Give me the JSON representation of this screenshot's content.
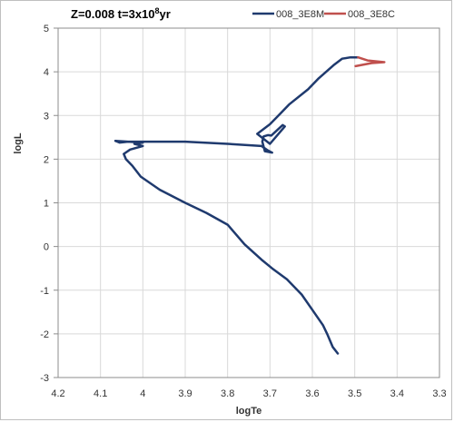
{
  "chart_data": {
    "type": "line",
    "title_main": "Z=0.008 t=3x10",
    "title_exp": "8",
    "title_tail": "yr",
    "xlabel": "logTe",
    "ylabel": "logL",
    "xlim": [
      4.2,
      3.3
    ],
    "ylim": [
      -3,
      5
    ],
    "x_reversed": true,
    "grid": true,
    "legend_position": "top-right",
    "xticks": [
      "4.2",
      "4.1",
      "4",
      "3.9",
      "3.8",
      "3.7",
      "3.6",
      "3.5",
      "3.4",
      "3.3"
    ],
    "yticks": [
      "5",
      "4",
      "3",
      "2",
      "1",
      "0",
      "-1",
      "-2",
      "-3"
    ],
    "series": [
      {
        "name": "008_3E8M",
        "color": "#1f3a6e",
        "x": [
          3.54,
          3.552,
          3.565,
          3.575,
          3.6,
          3.625,
          3.66,
          3.695,
          3.72,
          3.76,
          3.8,
          3.85,
          3.9,
          3.96,
          4.005,
          4.025,
          4.04,
          4.045,
          4.03,
          4.0,
          4.02,
          4.0,
          4.065,
          4.055,
          4.035,
          3.99,
          3.9,
          3.8,
          3.72,
          3.705,
          3.695,
          3.712,
          3.718,
          3.715,
          3.705,
          3.697,
          3.67,
          3.665,
          3.7,
          3.73,
          3.7,
          3.68,
          3.655,
          3.61,
          3.585,
          3.55,
          3.53,
          3.51,
          3.492
        ],
        "y": [
          -2.45,
          -2.3,
          -2.0,
          -1.8,
          -1.45,
          -1.1,
          -0.75,
          -0.5,
          -0.3,
          0.05,
          0.5,
          0.77,
          1.0,
          1.3,
          1.6,
          1.85,
          2.0,
          2.12,
          2.22,
          2.3,
          2.35,
          2.38,
          2.42,
          2.38,
          2.4,
          2.4,
          2.4,
          2.35,
          2.3,
          2.2,
          2.15,
          2.18,
          2.4,
          2.52,
          2.55,
          2.54,
          2.78,
          2.75,
          2.35,
          2.58,
          2.8,
          3.0,
          3.25,
          3.6,
          3.85,
          4.15,
          4.3,
          4.33,
          4.33
        ]
      },
      {
        "name": "008_3E8C",
        "color": "#c0504d",
        "x": [
          3.492,
          3.47,
          3.43,
          3.46,
          3.498
        ],
        "y": [
          4.33,
          4.26,
          4.22,
          4.2,
          4.13
        ]
      }
    ]
  }
}
